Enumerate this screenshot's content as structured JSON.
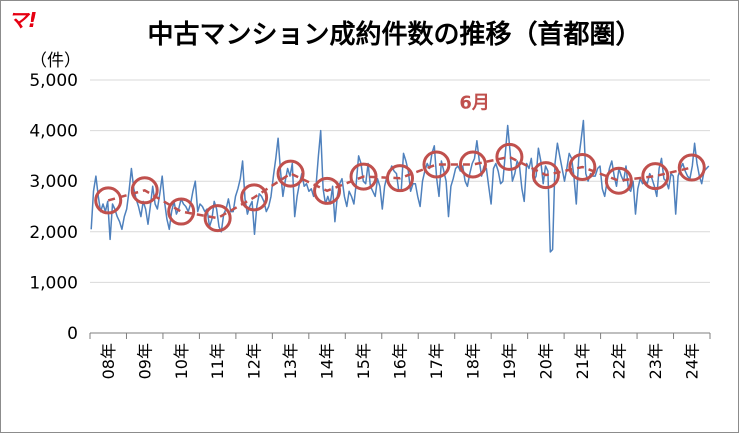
{
  "logo": "マ!",
  "chart_data": {
    "type": "line",
    "title": "中古マンション成約件数の推移（首都圏）",
    "unit_label": "（件）",
    "ylim": [
      0,
      5000
    ],
    "yticks": [
      0,
      1000,
      2000,
      3000,
      4000,
      5000
    ],
    "ytick_labels": [
      "0",
      "1,000",
      "2,000",
      "3,000",
      "4,000",
      "5,000"
    ],
    "xtick_labels": [
      "08年",
      "09年",
      "10年",
      "11年",
      "12年",
      "13年",
      "14年",
      "15年",
      "16年",
      "17年",
      "18年",
      "19年",
      "20年",
      "21年",
      "22年",
      "23年",
      "24年"
    ],
    "annotation": "6月",
    "grid": true,
    "colors": {
      "monthly": "#4f81bd",
      "annual": "#c0504d"
    },
    "series": [
      {
        "values": [
          2050,
          2800,
          3100,
          2700,
          2400,
          2550,
          2400,
          2600,
          1850,
          2550,
          2450,
          2300,
          2200,
          2050,
          2300,
          2450,
          2800,
          3250,
          2850,
          2650,
          2500,
          2300,
          2600,
          2450,
          2150,
          2500,
          2900,
          2550,
          2450,
          2750,
          3100,
          2600,
          2250,
          2050,
          2400,
          2600,
          2350,
          2450,
          2650,
          2550,
          2500,
          2400,
          2550,
          2800,
          3000,
          2400,
          2550,
          2500,
          2400,
          2450,
          2100,
          2250,
          2600,
          2450,
          2100,
          2000,
          2350,
          2450,
          2650,
          2400,
          2400,
          2700,
          2850,
          3050,
          3400,
          2650,
          2350,
          2500,
          2600,
          1950,
          2500,
          2750,
          2700,
          2600,
          2400,
          2500,
          2700,
          3100,
          3450,
          3850,
          3200,
          2700,
          3000,
          3250,
          3100,
          3350,
          2300,
          2700,
          2950,
          3150,
          2900,
          2950,
          2800,
          2850,
          2700,
          2900,
          3500,
          4000,
          2850,
          2550,
          2700,
          2550,
          2900,
          2200,
          2700,
          2950,
          3050,
          2700,
          2500,
          2800,
          2700,
          2550,
          2950,
          3500,
          3350,
          3000,
          2950,
          3350,
          2900,
          2800,
          2700,
          3050,
          2900,
          2450,
          2900,
          3100,
          3150,
          3300,
          3200,
          3150,
          2800,
          2800,
          3550,
          3400,
          3200,
          2800,
          2950,
          2950,
          2700,
          2500,
          3000,
          3200,
          3350,
          3250,
          3550,
          3700,
          3050,
          2700,
          3400,
          3200,
          3000,
          2300,
          2900,
          3050,
          3250,
          3300,
          3200,
          3300,
          3000,
          2900,
          3150,
          3350,
          3450,
          3800,
          3400,
          3100,
          3300,
          3250,
          2900,
          2550,
          3250,
          3350,
          3200,
          2950,
          3000,
          3550,
          4100,
          3600,
          3000,
          3150,
          3400,
          3300,
          2850,
          2600,
          3350,
          3250,
          3450,
          3000,
          3100,
          3650,
          3400,
          2950,
          3300,
          3200,
          1600,
          1650,
          3350,
          3750,
          3500,
          3250,
          3000,
          3250,
          3550,
          3450,
          3100,
          2550,
          3450,
          3800,
          4200,
          3150,
          3000,
          3150,
          3100,
          3100,
          3250,
          3300,
          2850,
          2700,
          3000,
          3250,
          3400,
          3100,
          2900,
          3250,
          3100,
          3000,
          3300,
          2850,
          2800,
          3000,
          2350,
          2850,
          3050,
          2950,
          3000,
          2950,
          3150,
          3050,
          2900,
          2700,
          3250,
          3450,
          3050,
          3000,
          2850,
          3150,
          3100,
          2350,
          3100,
          3250,
          3350,
          3200,
          3100,
          3050,
          3300,
          3750,
          3350,
          3100,
          2950,
          3200,
          3250,
          3300
        ]
      },
      {
        "x": [
          "08年",
          "09年",
          "10年",
          "11年",
          "12年",
          "13年",
          "14年",
          "15年",
          "16年",
          "17年",
          "18年",
          "19年",
          "20年",
          "21年",
          "22年",
          "23年",
          "24年"
        ],
        "values": [
          2620,
          2820,
          2400,
          2270,
          2680,
          3150,
          2810,
          3090,
          3060,
          3330,
          3330,
          3480,
          3120,
          3280,
          3010,
          3100,
          3270
        ]
      }
    ]
  }
}
